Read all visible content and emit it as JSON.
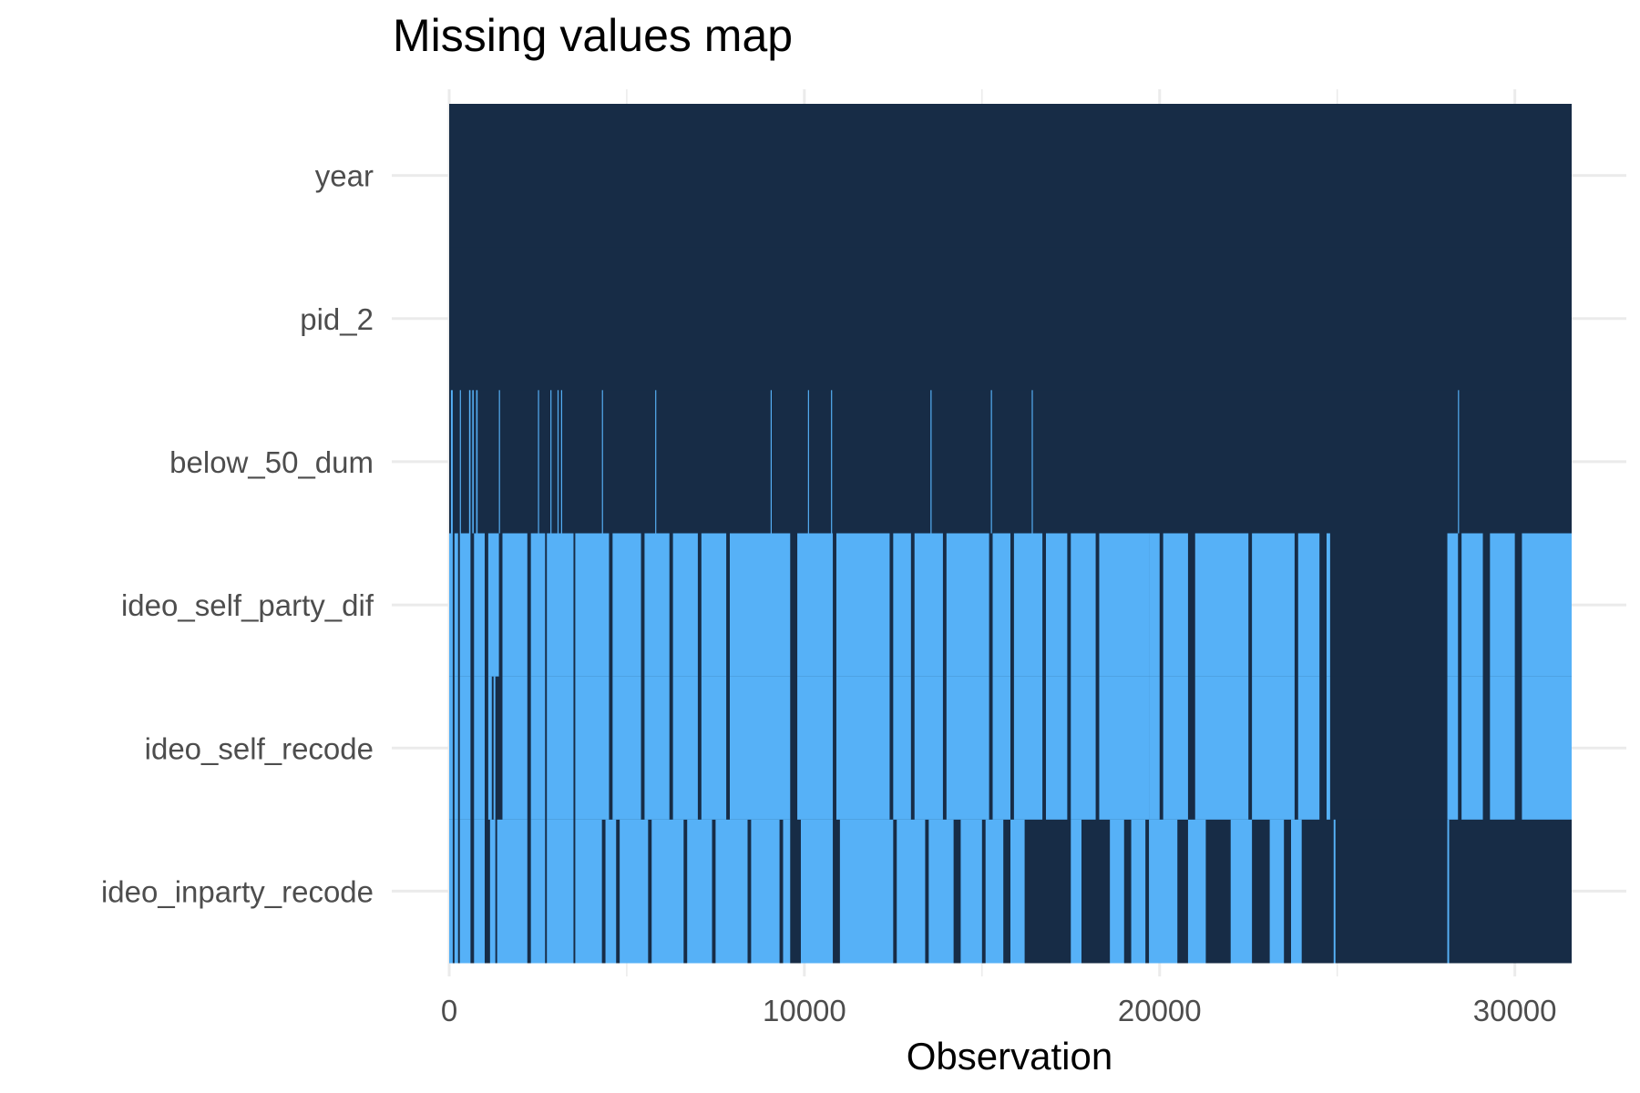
{
  "chart_data": {
    "type": "heatmap",
    "title": "Missing values map",
    "xlabel": "Observation",
    "ylabel": "",
    "xlim": [
      0,
      31600
    ],
    "x_ticks": [
      "0",
      "10000",
      "20000",
      "30000"
    ],
    "x_tick_values": [
      0,
      10000,
      20000,
      30000
    ],
    "variables": [
      "year",
      "pid_2",
      "below_50_dum",
      "ideo_self_party_dif",
      "ideo_self_recode",
      "ideo_inparty_recode"
    ],
    "legend": "none",
    "grid": true,
    "colors": {
      "present": "#172c46",
      "missing": "#56b1f7",
      "grid": "#ebebeb"
    },
    "missing_ranges": [
      {
        "variable": "year",
        "ranges": []
      },
      {
        "variable": "pid_2",
        "ranges": []
      },
      {
        "variable": "below_50_dum",
        "ranges": [
          [
            50,
            100
          ],
          [
            300,
            330
          ],
          [
            560,
            600
          ],
          [
            650,
            690
          ],
          [
            760,
            800
          ],
          [
            1400,
            1430
          ],
          [
            2500,
            2530
          ],
          [
            2850,
            2880
          ],
          [
            3050,
            3080
          ],
          [
            3150,
            3180
          ],
          [
            4300,
            4330
          ],
          [
            5800,
            5830
          ],
          [
            9050,
            9080
          ],
          [
            10100,
            10130
          ],
          [
            10750,
            10780
          ],
          [
            13550,
            13580
          ],
          [
            15250,
            15280
          ],
          [
            16400,
            16430
          ],
          [
            28400,
            28430
          ]
        ]
      },
      {
        "variable": "ideo_self_party_dif",
        "ranges": [
          [
            0,
            100
          ],
          [
            150,
            250
          ],
          [
            300,
            600
          ],
          [
            700,
            1000
          ],
          [
            1100,
            1400
          ],
          [
            1500,
            2200
          ],
          [
            2300,
            2700
          ],
          [
            2750,
            3500
          ],
          [
            3550,
            4500
          ],
          [
            4600,
            5400
          ],
          [
            5500,
            6200
          ],
          [
            6300,
            7000
          ],
          [
            7100,
            7800
          ],
          [
            7900,
            9600
          ],
          [
            9800,
            10800
          ],
          [
            10900,
            12400
          ],
          [
            12500,
            13000
          ],
          [
            13100,
            13900
          ],
          [
            14000,
            15200
          ],
          [
            15300,
            15800
          ],
          [
            15900,
            16700
          ],
          [
            16800,
            17400
          ],
          [
            17500,
            18200
          ],
          [
            18300,
            19700
          ],
          [
            19700,
            20000
          ],
          [
            20100,
            20800
          ],
          [
            21000,
            22500
          ],
          [
            22600,
            23800
          ],
          [
            23900,
            24500
          ],
          [
            24700,
            24800
          ],
          [
            28100,
            28400
          ],
          [
            28500,
            29100
          ],
          [
            29300,
            30000
          ],
          [
            30200,
            31600
          ]
        ]
      },
      {
        "variable": "ideo_self_recode",
        "ranges": [
          [
            0,
            100
          ],
          [
            150,
            250
          ],
          [
            300,
            600
          ],
          [
            700,
            1000
          ],
          [
            1100,
            1200
          ],
          [
            1250,
            1300
          ],
          [
            1500,
            2200
          ],
          [
            2300,
            2700
          ],
          [
            2750,
            3500
          ],
          [
            3550,
            4500
          ],
          [
            4600,
            5400
          ],
          [
            5500,
            6200
          ],
          [
            6300,
            7000
          ],
          [
            7100,
            7800
          ],
          [
            7900,
            9600
          ],
          [
            9800,
            10800
          ],
          [
            10900,
            12400
          ],
          [
            12500,
            13000
          ],
          [
            13100,
            13900
          ],
          [
            14000,
            15200
          ],
          [
            15300,
            15800
          ],
          [
            15900,
            16700
          ],
          [
            16800,
            17400
          ],
          [
            17500,
            18200
          ],
          [
            18300,
            19700
          ],
          [
            19700,
            20000
          ],
          [
            20100,
            20800
          ],
          [
            21000,
            22500
          ],
          [
            22600,
            23800
          ],
          [
            23900,
            24500
          ],
          [
            24700,
            24800
          ],
          [
            28100,
            28400
          ],
          [
            28500,
            29100
          ],
          [
            29300,
            30000
          ],
          [
            30200,
            31600
          ]
        ]
      },
      {
        "variable": "ideo_inparty_recode",
        "ranges": [
          [
            0,
            100
          ],
          [
            150,
            250
          ],
          [
            300,
            600
          ],
          [
            700,
            1000
          ],
          [
            1150,
            1300
          ],
          [
            1350,
            2200
          ],
          [
            2300,
            2700
          ],
          [
            2750,
            3500
          ],
          [
            3550,
            4300
          ],
          [
            4400,
            4700
          ],
          [
            4800,
            5600
          ],
          [
            5700,
            6600
          ],
          [
            6700,
            7400
          ],
          [
            7500,
            8400
          ],
          [
            8500,
            9300
          ],
          [
            9400,
            9600
          ],
          [
            9900,
            10800
          ],
          [
            11000,
            12500
          ],
          [
            12600,
            13400
          ],
          [
            13500,
            14200
          ],
          [
            14400,
            15000
          ],
          [
            15100,
            15600
          ],
          [
            15800,
            16200
          ],
          [
            17500,
            17800
          ],
          [
            18600,
            19000
          ],
          [
            19200,
            19600
          ],
          [
            19700,
            20500
          ],
          [
            20800,
            21300
          ],
          [
            22000,
            22600
          ],
          [
            23100,
            23500
          ],
          [
            23700,
            24000
          ],
          [
            24900,
            24950
          ],
          [
            28100,
            28150
          ]
        ]
      }
    ]
  }
}
